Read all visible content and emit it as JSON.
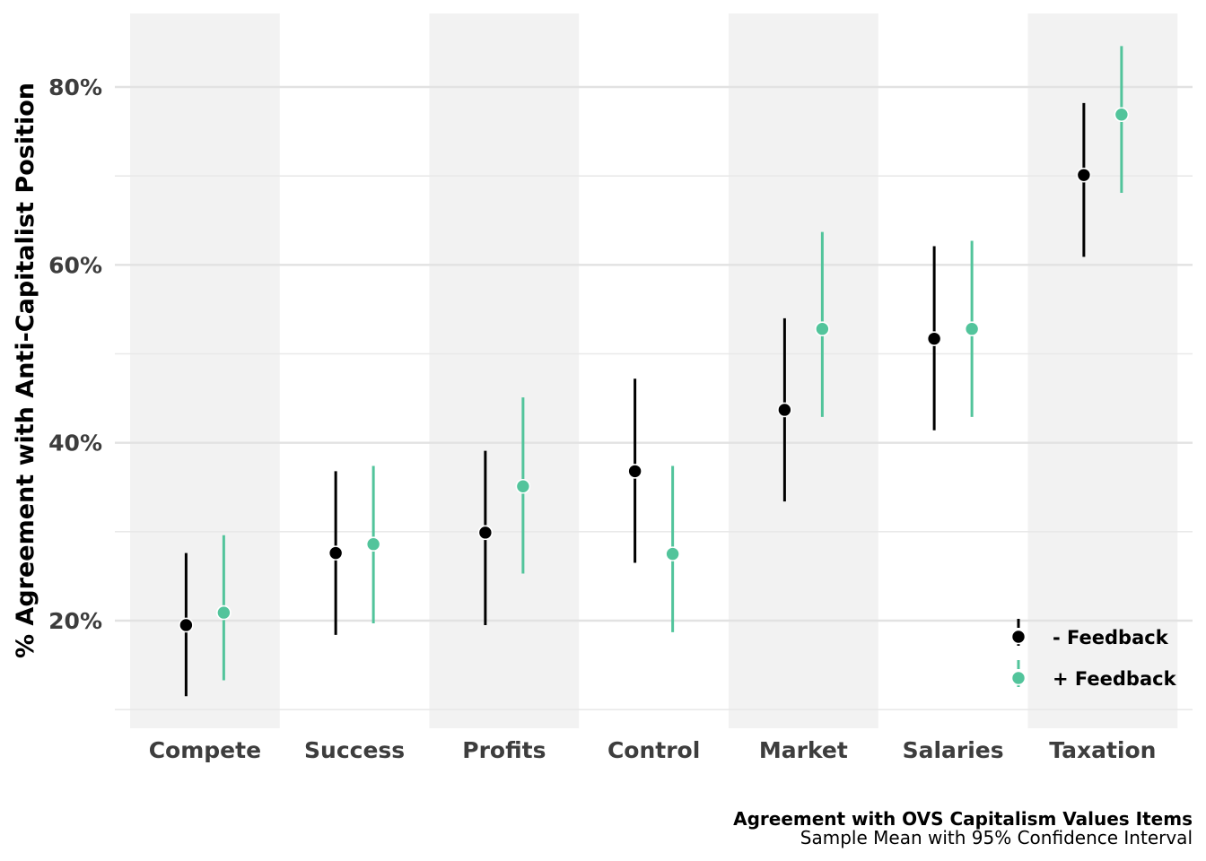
{
  "chart_data": {
    "type": "scatter",
    "subtype": "dot-and-whisker",
    "categories": [
      "Compete",
      "Success",
      "Profits",
      "Control",
      "Market",
      "Salaries",
      "Taxation"
    ],
    "ylabel": "% Agreement with Anti-Capitalist Position",
    "ylim": [
      0.1,
      0.88
    ],
    "y_ticks": [
      0.2,
      0.4,
      0.6,
      0.8
    ],
    "y_tick_labels": [
      "20%",
      "40%",
      "60%",
      "80%"
    ],
    "grid": true,
    "legend_position": "bottom-right",
    "series": [
      {
        "name": "- Feedback",
        "color": "#000000",
        "values": [
          0.195,
          0.276,
          0.299,
          0.368,
          0.437,
          0.517,
          0.701
        ],
        "lower": [
          0.115,
          0.184,
          0.195,
          0.265,
          0.334,
          0.414,
          0.609
        ],
        "upper": [
          0.276,
          0.368,
          0.391,
          0.472,
          0.54,
          0.621,
          0.782
        ]
      },
      {
        "name": "+ Feedback",
        "color": "#52c49b",
        "values": [
          0.209,
          0.286,
          0.351,
          0.275,
          0.528,
          0.528,
          0.769
        ],
        "lower": [
          0.133,
          0.197,
          0.253,
          0.187,
          0.429,
          0.429,
          0.681
        ],
        "upper": [
          0.296,
          0.374,
          0.451,
          0.374,
          0.637,
          0.627,
          0.846
        ]
      }
    ],
    "caption_title": "Agreement with OVS Capitalism Values Items",
    "caption_subtitle": "Sample Mean with 95% Confidence Interval"
  }
}
